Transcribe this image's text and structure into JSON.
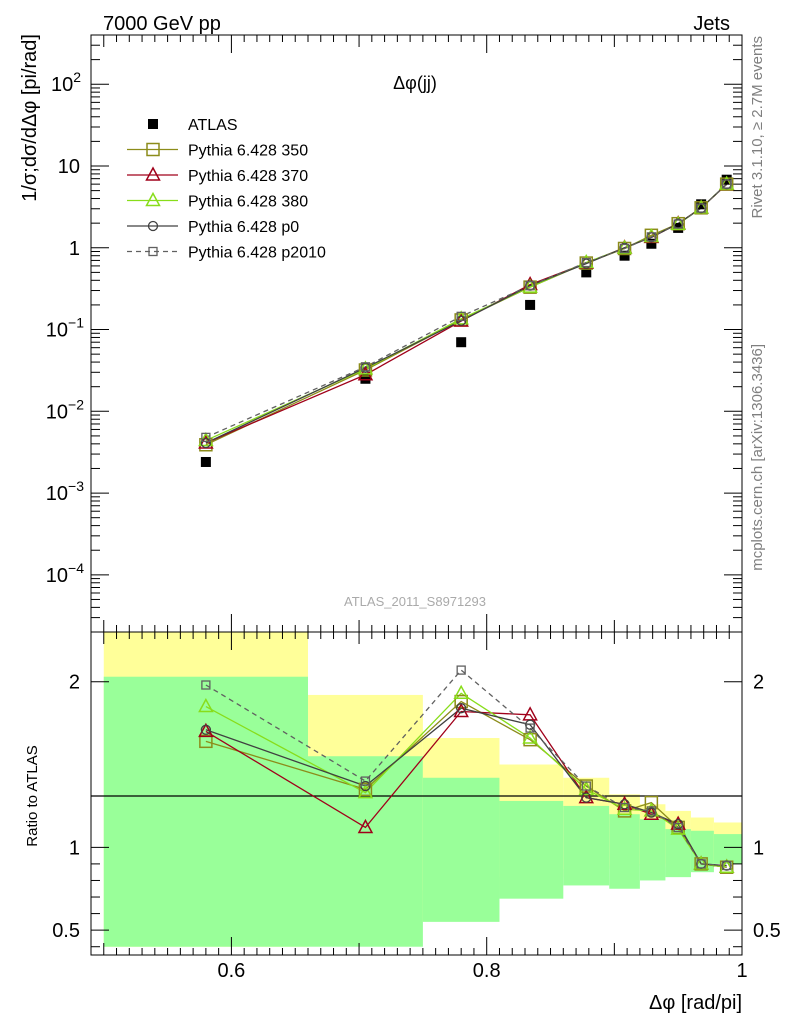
{
  "header": {
    "left": "7000 GeV pp",
    "right": "Jets"
  },
  "side_labels": {
    "rivet": "Rivet 3.1.10, ≥ 2.7M events",
    "mcplots": "mcplots.cern.ch [arXiv:1306.3436]"
  },
  "analysis_tag": "ATLAS_2011_S8971293",
  "colors": {
    "atlas": "#000000",
    "p350": "#8c8c1a",
    "p370": "#a0001a",
    "p380": "#88dd1a",
    "p0": "#404040",
    "p2010": "#606060",
    "band_inner": "#99ff99",
    "band_outer": "#ffff99"
  },
  "chart_data": [
    {
      "type": "line",
      "title": "Δφ(jj)",
      "ylabel": "1/σ;dσ/dΔφ [pi/rad]",
      "xlabel": "",
      "xlim": [
        0.49,
        1.0
      ],
      "ylim": [
        2e-05,
        400
      ],
      "log_y": true,
      "y_ticks": [
        "10^-4",
        "10^-3",
        "10^-2",
        "10^-1",
        "1",
        "10",
        "10^2"
      ],
      "x": [
        0.58,
        0.705,
        0.78,
        0.834,
        0.878,
        0.908,
        0.929,
        0.95,
        0.968,
        0.988
      ],
      "series": [
        {
          "name": "ATLAS",
          "color_key": "atlas",
          "marker": "filled-square",
          "dash": false,
          "values": [
            0.0024,
            0.025,
            0.07,
            0.2,
            0.5,
            0.8,
            1.12,
            1.75,
            3.4,
            6.8
          ]
        },
        {
          "name": "Pythia 6.428 350",
          "color_key": "p350",
          "marker": "open-square",
          "dash": false,
          "values": [
            0.0039,
            0.032,
            0.131,
            0.33,
            0.65,
            0.98,
            1.42,
            1.97,
            3.08,
            6.0
          ]
        },
        {
          "name": "Pythia 6.428 370",
          "color_key": "p370",
          "marker": "open-triangle",
          "dash": false,
          "values": [
            0.0041,
            0.028,
            0.127,
            0.355,
            0.65,
            1.0,
            1.34,
            1.97,
            3.06,
            5.95
          ]
        },
        {
          "name": "Pythia 6.428 380",
          "color_key": "p380",
          "marker": "open-triangle",
          "dash": false,
          "values": [
            0.0044,
            0.033,
            0.135,
            0.33,
            0.66,
            0.99,
            1.37,
            1.94,
            3.06,
            6.0
          ]
        },
        {
          "name": "Pythia 6.428 p0",
          "color_key": "p0",
          "marker": "open-circle",
          "dash": false,
          "values": [
            0.0041,
            0.034,
            0.128,
            0.345,
            0.64,
            1.0,
            1.34,
            1.98,
            3.06,
            6.0
          ]
        },
        {
          "name": "Pythia 6.428 p2010",
          "color_key": "p2010",
          "marker": "open-square-small",
          "dash": true,
          "values": [
            0.0048,
            0.035,
            0.145,
            0.345,
            0.66,
            0.98,
            1.36,
            1.95,
            3.06,
            6.02
          ]
        }
      ]
    },
    {
      "type": "line",
      "ylabel": "Ratio to ATLAS",
      "xlabel": "Δφ [rad/pi]",
      "xlim": [
        0.49,
        1.0
      ],
      "ylim": [
        0.35,
        2.3
      ],
      "x_ticks": [
        "0.6",
        "0.8",
        "1"
      ],
      "y_ticks": [
        "0.5",
        "1",
        "2"
      ],
      "reference_line": 1,
      "bands": [
        {
          "x0": 0.5,
          "x1": 0.66,
          "inner": [
            0.4,
            2.03
          ],
          "outer": [
            0.4,
            2.3
          ]
        },
        {
          "x0": 0.66,
          "x1": 0.75,
          "inner": [
            0.4,
            1.55
          ],
          "outer": [
            0.55,
            1.92
          ]
        },
        {
          "x0": 0.75,
          "x1": 0.81,
          "inner": [
            0.55,
            1.42
          ],
          "outer": [
            0.74,
            1.66
          ]
        },
        {
          "x0": 0.81,
          "x1": 0.86,
          "inner": [
            0.69,
            1.28
          ],
          "outer": [
            0.82,
            1.5
          ]
        },
        {
          "x0": 0.86,
          "x1": 0.896,
          "inner": [
            0.77,
            1.25
          ],
          "outer": [
            0.87,
            1.42
          ]
        },
        {
          "x0": 0.896,
          "x1": 0.92,
          "inner": [
            0.75,
            1.2
          ],
          "outer": [
            0.89,
            1.32
          ]
        },
        {
          "x0": 0.92,
          "x1": 0.94,
          "inner": [
            0.8,
            1.17
          ],
          "outer": [
            0.9,
            1.26
          ]
        },
        {
          "x0": 0.94,
          "x1": 0.96,
          "inner": [
            0.82,
            1.11
          ],
          "outer": [
            0.88,
            1.22
          ]
        },
        {
          "x0": 0.96,
          "x1": 0.978,
          "inner": [
            0.85,
            1.1
          ],
          "outer": [
            0.87,
            1.18
          ]
        },
        {
          "x0": 0.978,
          "x1": 1.0,
          "inner": [
            0.9,
            1.08
          ],
          "outer": [
            0.92,
            1.15
          ]
        }
      ],
      "x": [
        0.58,
        0.705,
        0.78,
        0.834,
        0.878,
        0.908,
        0.929,
        0.95,
        0.968,
        0.988
      ],
      "series": [
        {
          "name": "Pythia 6.428 350",
          "color_key": "p350",
          "marker": "open-square",
          "dash": false,
          "values": [
            1.64,
            1.35,
            1.88,
            1.65,
            1.37,
            1.22,
            1.27,
            1.12,
            0.9,
            0.88
          ]
        },
        {
          "name": "Pythia 6.428 370",
          "color_key": "p370",
          "marker": "open-triangle",
          "dash": false,
          "values": [
            1.7,
            1.12,
            1.82,
            1.8,
            1.3,
            1.26,
            1.2,
            1.14,
            0.9,
            0.88
          ]
        },
        {
          "name": "Pythia 6.428 380",
          "color_key": "p380",
          "marker": "open-triangle",
          "dash": false,
          "values": [
            1.85,
            1.33,
            1.93,
            1.66,
            1.35,
            1.23,
            1.22,
            1.11,
            0.9,
            0.88
          ]
        },
        {
          "name": "Pythia 6.428 p0",
          "color_key": "p0",
          "marker": "open-circle",
          "dash": false,
          "values": [
            1.71,
            1.37,
            1.84,
            1.74,
            1.3,
            1.26,
            1.21,
            1.14,
            0.9,
            0.89
          ]
        },
        {
          "name": "Pythia 6.428 p2010",
          "color_key": "p2010",
          "marker": "open-square-small",
          "dash": true,
          "values": [
            1.98,
            1.4,
            2.07,
            1.72,
            1.37,
            1.24,
            1.22,
            1.12,
            0.9,
            0.89
          ]
        }
      ]
    }
  ]
}
